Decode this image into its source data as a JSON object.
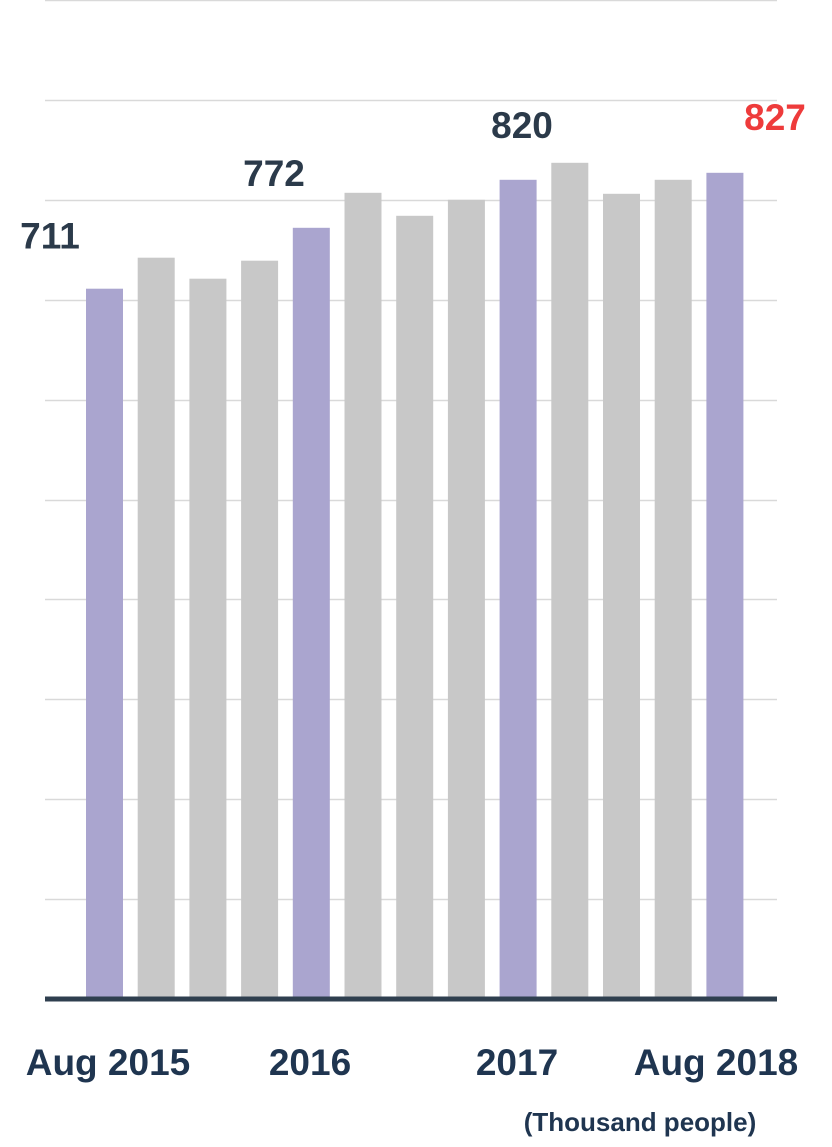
{
  "chart_data": {
    "type": "bar",
    "categories": [
      "Aug 2015",
      "",
      "",
      "",
      "2016",
      "",
      "",
      "",
      "2017",
      "",
      "",
      "",
      "Aug 2018"
    ],
    "values": [
      711,
      742,
      721,
      739,
      772,
      807,
      784,
      800,
      820,
      837,
      806,
      820,
      827
    ],
    "ylim": [
      0,
      1000
    ],
    "grid": true,
    "x_tick_labels": [
      "Aug 2015",
      "2016",
      "2017",
      "Aug 2018"
    ],
    "data_labels": [
      {
        "index": 0,
        "text": "711"
      },
      {
        "index": 4,
        "text": "772"
      },
      {
        "index": 8,
        "text": "820"
      },
      {
        "index": 12,
        "text": "827"
      }
    ],
    "highlighted_indices": [
      0,
      4,
      8,
      12
    ],
    "unit_note": "(Thousand people)",
    "colors": {
      "highlight_bar": "#aaa5cf",
      "other_bar": "#c8c8c8",
      "label_text": "#2b3a4a",
      "latest_label": "#ee3b3b",
      "gridline": "#d9d9d9",
      "baseline": "#2f3f4f",
      "tick_text": "#1f3550"
    }
  }
}
